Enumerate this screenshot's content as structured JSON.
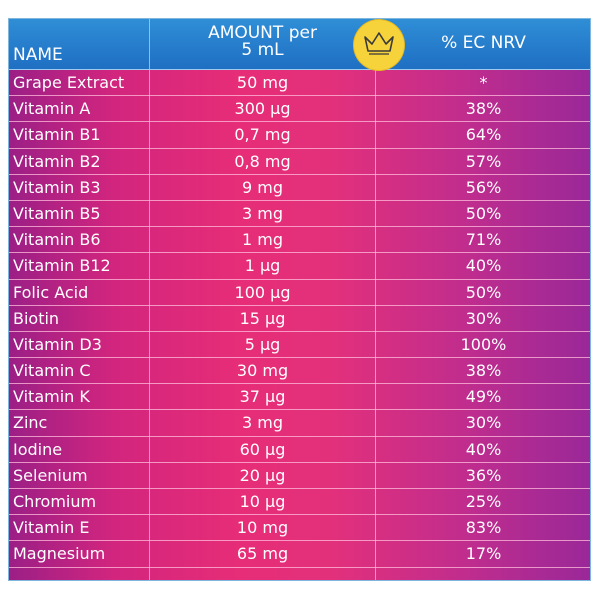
{
  "header": {
    "name": "NAME",
    "amount_line1": "AMOUNT per",
    "amount_line2": "5 mL",
    "nrv": "% EC NRV"
  },
  "badge": {
    "icon": "crown-icon",
    "color": "#f6d33a"
  },
  "colors": {
    "header_blue": "#1f6fc3",
    "body_pink": "#e72d77",
    "body_purple": "#9a2898"
  },
  "rows": [
    {
      "name": "Grape Extract",
      "amount": "50 mg",
      "nrv": "*"
    },
    {
      "name": "Vitamin A",
      "amount": "300 µg",
      "nrv": "38%"
    },
    {
      "name": "Vitamin B1",
      "amount": "0,7 mg",
      "nrv": "64%"
    },
    {
      "name": "Vitamin B2",
      "amount": "0,8 mg",
      "nrv": "57%"
    },
    {
      "name": "Vitamin B3",
      "amount": "9 mg",
      "nrv": "56%"
    },
    {
      "name": "Vitamin B5",
      "amount": "3 mg",
      "nrv": "50%"
    },
    {
      "name": "Vitamin B6",
      "amount": "1 mg",
      "nrv": "71%"
    },
    {
      "name": "Vitamin B12",
      "amount": "1 µg",
      "nrv": "40%"
    },
    {
      "name": "Folic Acid",
      "amount": "100 µg",
      "nrv": "50%"
    },
    {
      "name": "Biotin",
      "amount": "15 µg",
      "nrv": "30%"
    },
    {
      "name": "Vitamin D3",
      "amount": "5 µg",
      "nrv": "100%"
    },
    {
      "name": "Vitamin C",
      "amount": "30 mg",
      "nrv": "38%"
    },
    {
      "name": "Vitamin K",
      "amount": "37 µg",
      "nrv": "49%"
    },
    {
      "name": "Zinc",
      "amount": "3 mg",
      "nrv": "30%"
    },
    {
      "name": "Iodine",
      "amount": "60 µg",
      "nrv": "40%"
    },
    {
      "name": "Selenium",
      "amount": "20 µg",
      "nrv": "36%"
    },
    {
      "name": "Chromium",
      "amount": "10 µg",
      "nrv": "25%"
    },
    {
      "name": "Vitamin E",
      "amount": "10 mg",
      "nrv": "83%"
    },
    {
      "name": "Magnesium",
      "amount": "65 mg",
      "nrv": "17%"
    }
  ]
}
